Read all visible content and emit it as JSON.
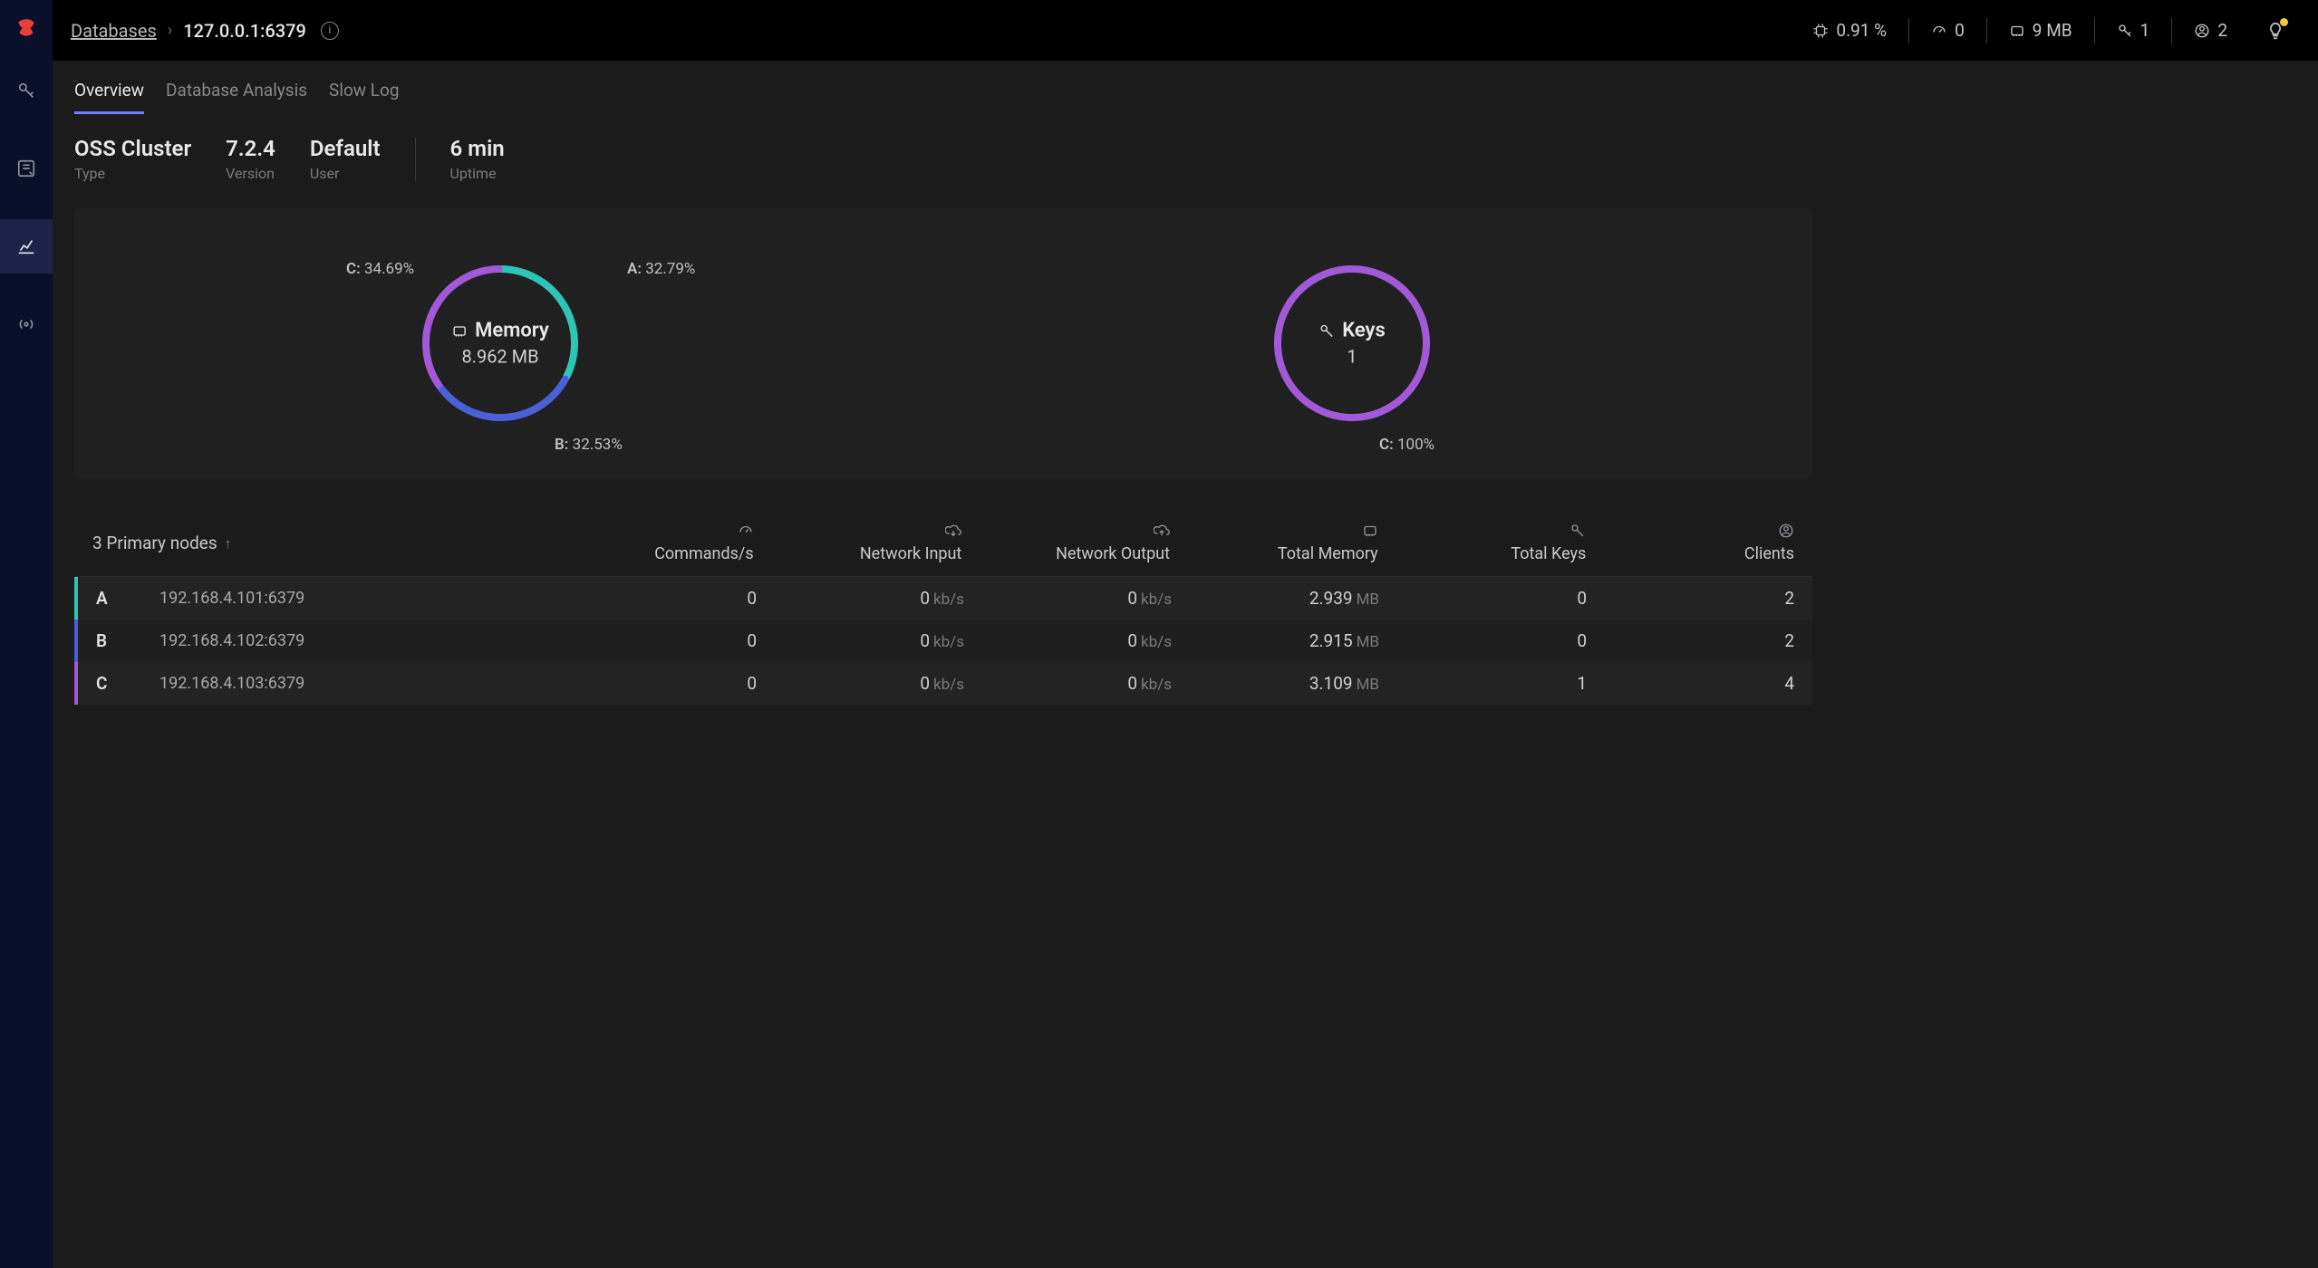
{
  "colors": {
    "accent": "#6f7dff",
    "logo": "#ff4438",
    "nodeA": "#2ec4b6",
    "nodeB": "#4a5fd8",
    "nodeC": "#a259d8",
    "cardBg": "#202020",
    "pageBg": "#1b1b1b"
  },
  "breadcrumb": {
    "root": "Databases",
    "current": "127.0.0.1:6379"
  },
  "topStats": {
    "cpu": "0.91 %",
    "commands": "0",
    "memory": "9 MB",
    "keys": "1",
    "clients": "2"
  },
  "tabs": {
    "overview": "Overview",
    "analysis": "Database Analysis",
    "slowlog": "Slow Log"
  },
  "cluster": {
    "type_val": "OSS Cluster",
    "type_lbl": "Type",
    "version_val": "7.2.4",
    "version_lbl": "Version",
    "user_val": "Default",
    "user_lbl": "User",
    "uptime_val": "6 min",
    "uptime_lbl": "Uptime"
  },
  "donuts": {
    "memory": {
      "title": "Memory",
      "total": "8.962 MB",
      "slices": [
        {
          "letter": "A",
          "pct": 32.79,
          "color": "#2ec4b6",
          "label": "A: 32.79%"
        },
        {
          "letter": "B",
          "pct": 32.53,
          "color": "#4a5fd8",
          "label": "B: 32.53%"
        },
        {
          "letter": "C",
          "pct": 34.69,
          "color": "#a259d8",
          "label": "C: 34.69%"
        }
      ]
    },
    "keys": {
      "title": "Keys",
      "total": "1",
      "slices": [
        {
          "letter": "C",
          "pct": 100,
          "color": "#a259d8",
          "label": "C: 100%"
        }
      ]
    }
  },
  "table": {
    "header_nodes": "3 Primary nodes",
    "cols": {
      "commands": "Commands/s",
      "net_in": "Network Input",
      "net_out": "Network Output",
      "total_mem": "Total Memory",
      "total_keys": "Total Keys",
      "clients": "Clients"
    },
    "rows": [
      {
        "letter": "A",
        "stripe": "stripeA",
        "addr": "192.168.4.101:6379",
        "commands": "0",
        "net_in": "0",
        "net_in_unit": "kb/s",
        "net_out": "0",
        "net_out_unit": "kb/s",
        "mem": "2.939",
        "mem_unit": "MB",
        "keys": "0",
        "clients": "2"
      },
      {
        "letter": "B",
        "stripe": "stripeB",
        "addr": "192.168.4.102:6379",
        "commands": "0",
        "net_in": "0",
        "net_in_unit": "kb/s",
        "net_out": "0",
        "net_out_unit": "kb/s",
        "mem": "2.915",
        "mem_unit": "MB",
        "keys": "0",
        "clients": "2"
      },
      {
        "letter": "C",
        "stripe": "stripeC",
        "addr": "192.168.4.103:6379",
        "commands": "0",
        "net_in": "0",
        "net_in_unit": "kb/s",
        "net_out": "0",
        "net_out_unit": "kb/s",
        "mem": "3.109",
        "mem_unit": "MB",
        "keys": "1",
        "clients": "4"
      }
    ]
  }
}
